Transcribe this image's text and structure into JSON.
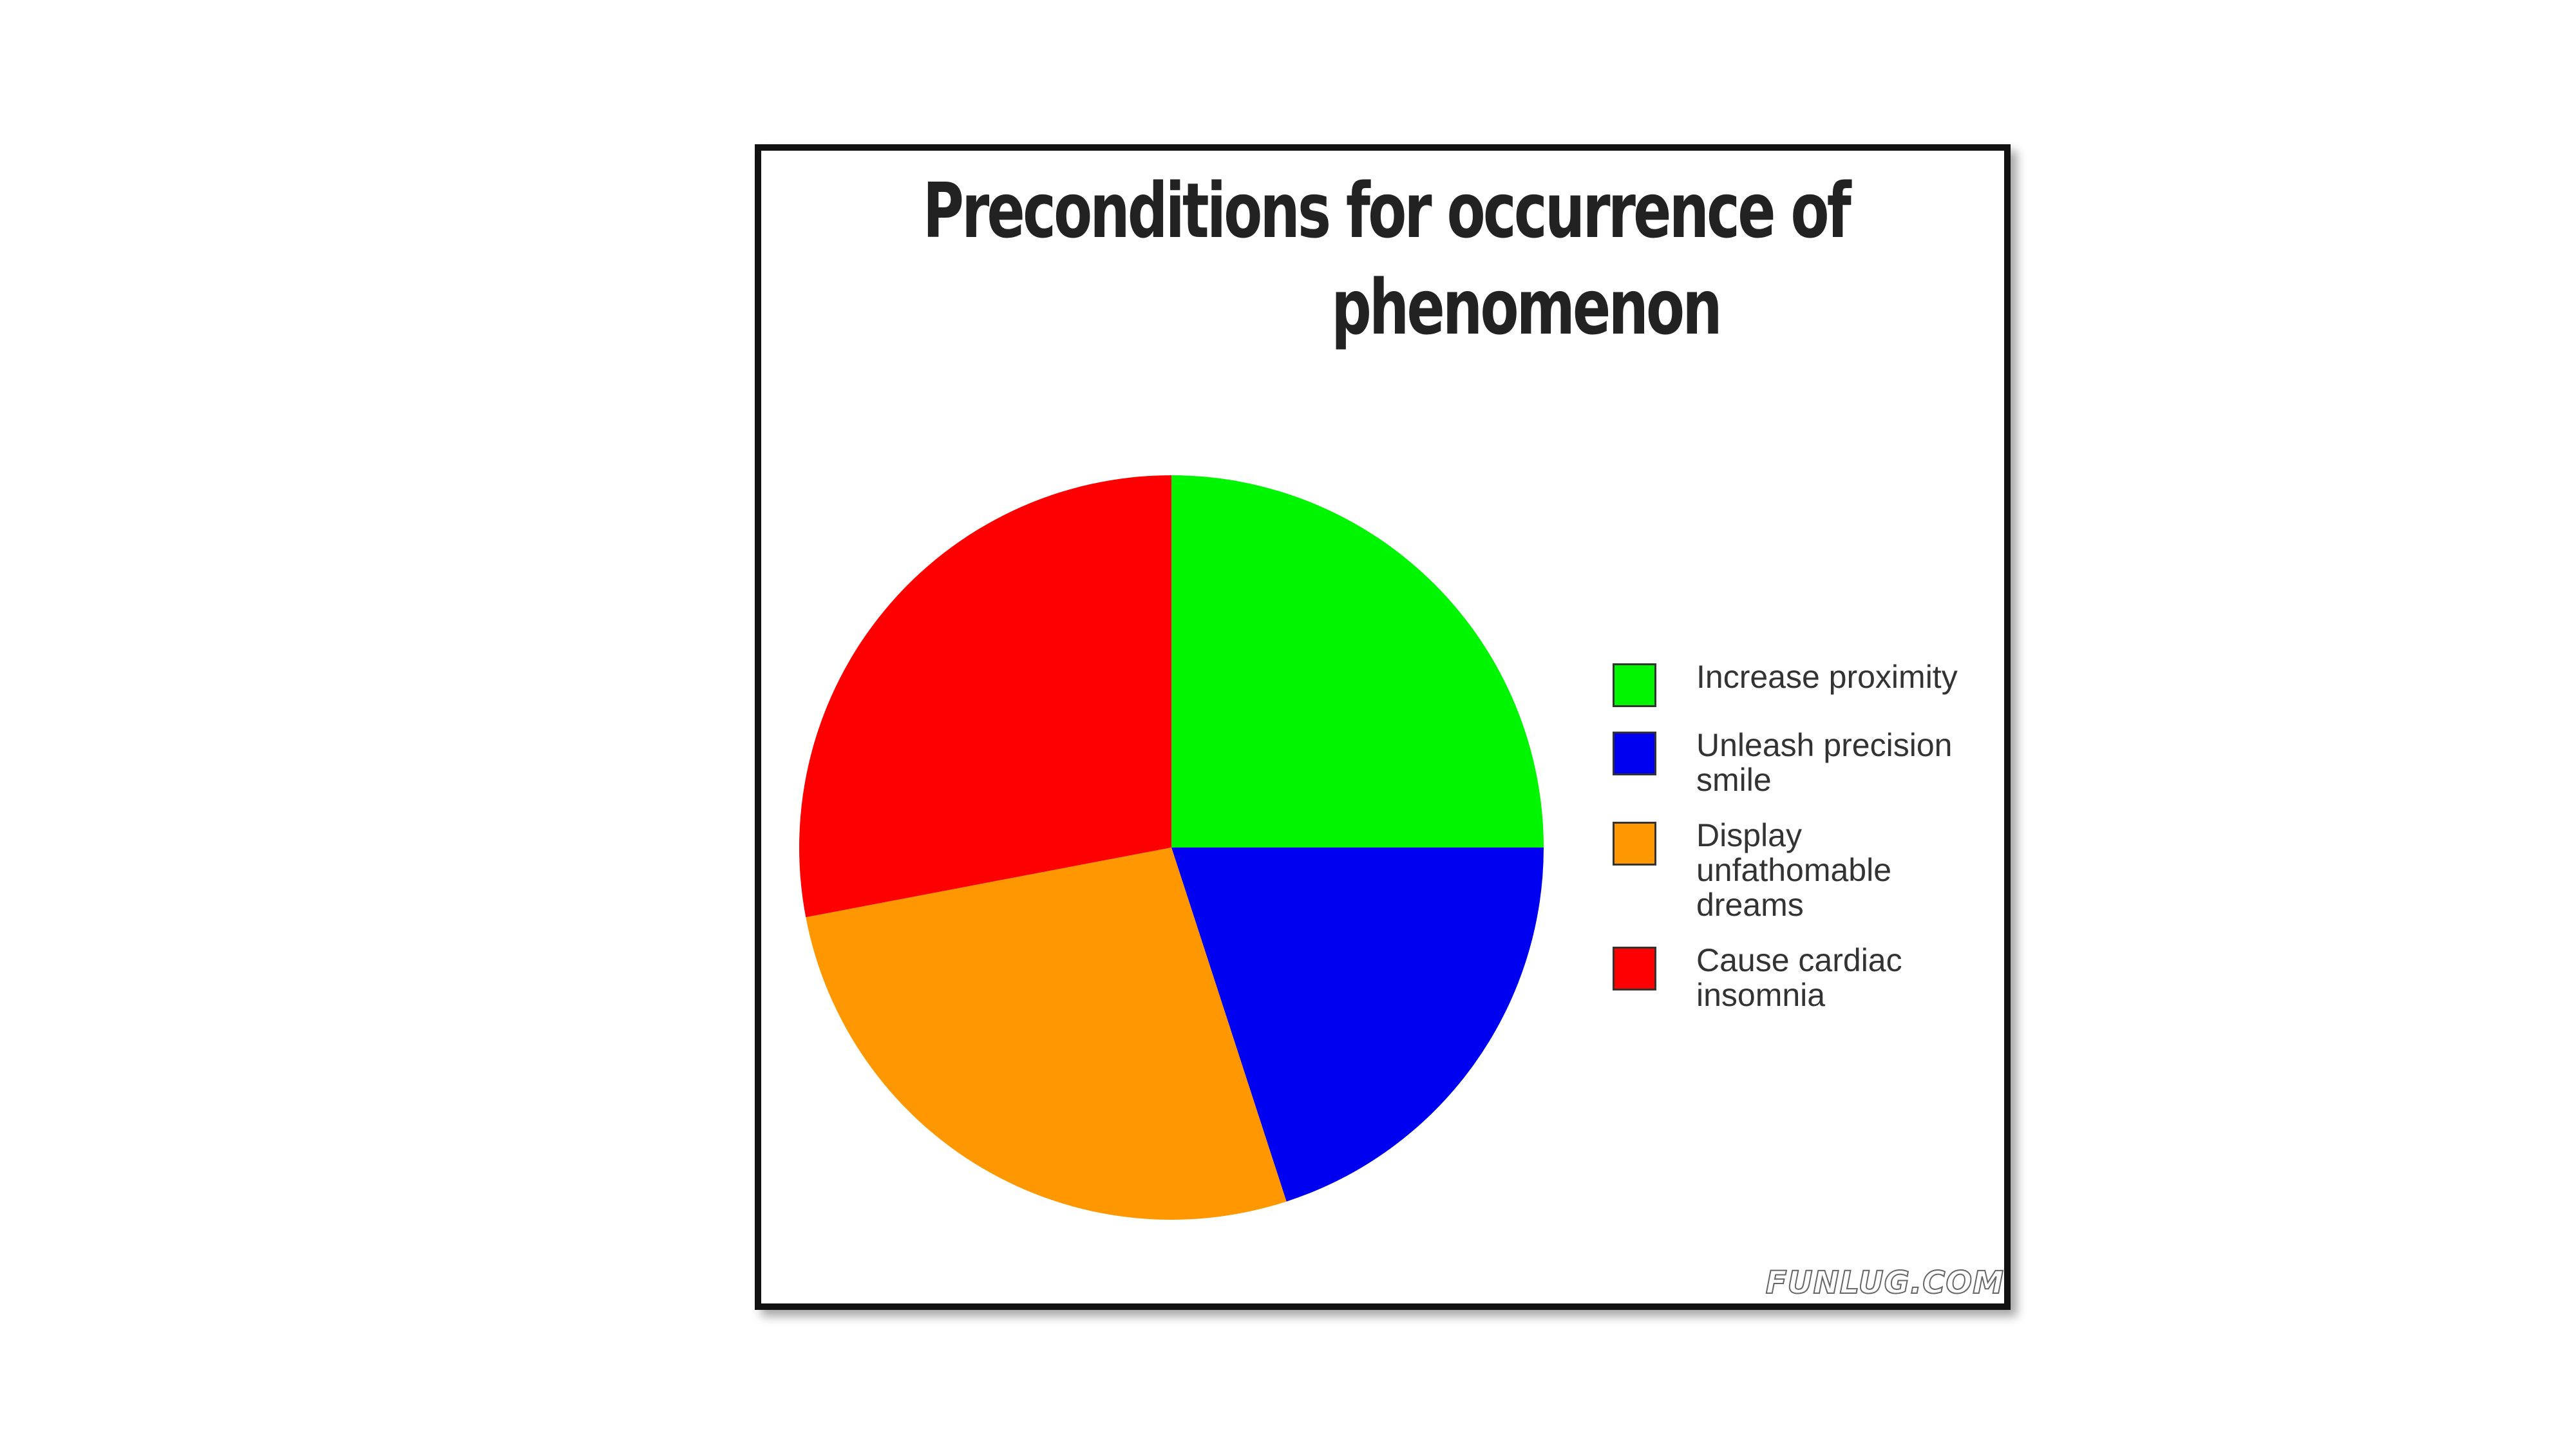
{
  "chart_data": {
    "type": "pie",
    "title_lines": [
      "Preconditions for occurrence of",
      "phenomenon"
    ],
    "slices": [
      {
        "label": "Increase proximity",
        "value": 25,
        "color": "#00f500"
      },
      {
        "label": "Unleash precision smile",
        "value": 20,
        "color": "#0000f0"
      },
      {
        "label": "Display unfathomable dreams",
        "value": 27,
        "color": "#ff9800"
      },
      {
        "label": "Cause cardiac insomnia",
        "value": 28,
        "color": "#ff0000"
      }
    ],
    "start_angle_deg": 0,
    "direction": "clockwise",
    "legend_position": "right"
  },
  "watermark": "FUNLUG.COM"
}
